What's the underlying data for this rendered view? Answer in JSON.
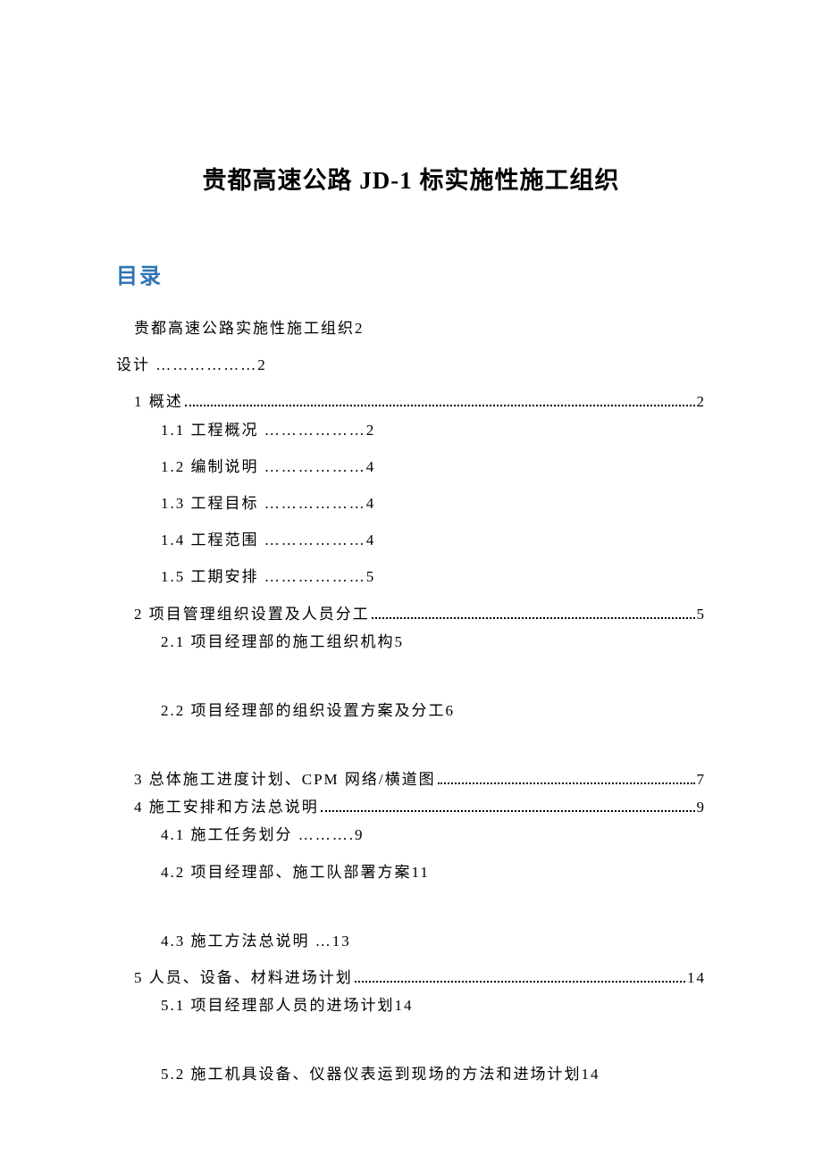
{
  "document": {
    "title": "贵都高速公路 JD-1 标实施性施工组织",
    "toc_heading": "目录",
    "title_fontsize": 27,
    "heading_color": "#2e74b5",
    "heading_fontsize": 24,
    "body_fontsize": 17,
    "background_color": "#ffffff",
    "text_color": "#000000",
    "entries": [
      {
        "text": "贵都高速公路实施性施工组织",
        "page": "2",
        "indent": 0,
        "style": "inline"
      },
      {
        "text": "设计",
        "page": "2",
        "indent": -1,
        "style": "short-dots"
      },
      {
        "text": "1 概述",
        "page": "2",
        "indent": 1,
        "style": "full-dots",
        "tight": true
      },
      {
        "text": "1.1 工程概况",
        "page": "2",
        "indent": 2,
        "style": "short-dots"
      },
      {
        "text": "1.2 编制说明",
        "page": "4",
        "indent": 2,
        "style": "short-dots"
      },
      {
        "text": "1.3  工程目标",
        "page": "4",
        "indent": 2,
        "style": "short-dots"
      },
      {
        "text": "1.4 工程范围",
        "page": "4",
        "indent": 2,
        "style": "short-dots"
      },
      {
        "text": "1.5 工期安排",
        "page": "5",
        "indent": 2,
        "style": "short-dots"
      },
      {
        "text": "2 项目管理组织设置及人员分工",
        "page": "5",
        "indent": 1,
        "style": "full-dots",
        "tight": true
      },
      {
        "text": "2.1 项目经理部的施工组织机构",
        "page": "5",
        "indent": 2,
        "style": "inline",
        "gap": true
      },
      {
        "text": "2.2 项目经理部的组织设置方案及分工",
        "page": "6",
        "indent": 2,
        "style": "inline",
        "gap": true
      },
      {
        "text": "3 总体施工进度计划、CPM 网络/横道图",
        "page": "7",
        "indent": 1,
        "style": "full-dots",
        "tight": true
      },
      {
        "text": "4 施工安排和方法总说明",
        "page": "9",
        "indent": 1,
        "style": "full-dots",
        "tight": true
      },
      {
        "text": "4.1 施工任务划分",
        "page": "9",
        "indent": 2,
        "style": "short-dots2"
      },
      {
        "text": "4.2 项目经理部、施工队部署方案",
        "page": "11",
        "indent": 2,
        "style": "inline",
        "gap": true
      },
      {
        "text": "4.3  施工方法总说明",
        "page": "13",
        "indent": 2,
        "style": "short-dots3"
      },
      {
        "text": "5 人员、设备、材料进场计划",
        "page": "14",
        "indent": 1,
        "style": "full-dots",
        "tight": true
      },
      {
        "text": "5.1 项目经理部人员的进场计划",
        "page": "14",
        "indent": 2,
        "style": "inline",
        "gap": true
      },
      {
        "text": "5.2 施工机具设备、仪器仪表运到现场的方法和进场计划",
        "page": "14",
        "indent": 2,
        "style": "inline"
      }
    ]
  }
}
